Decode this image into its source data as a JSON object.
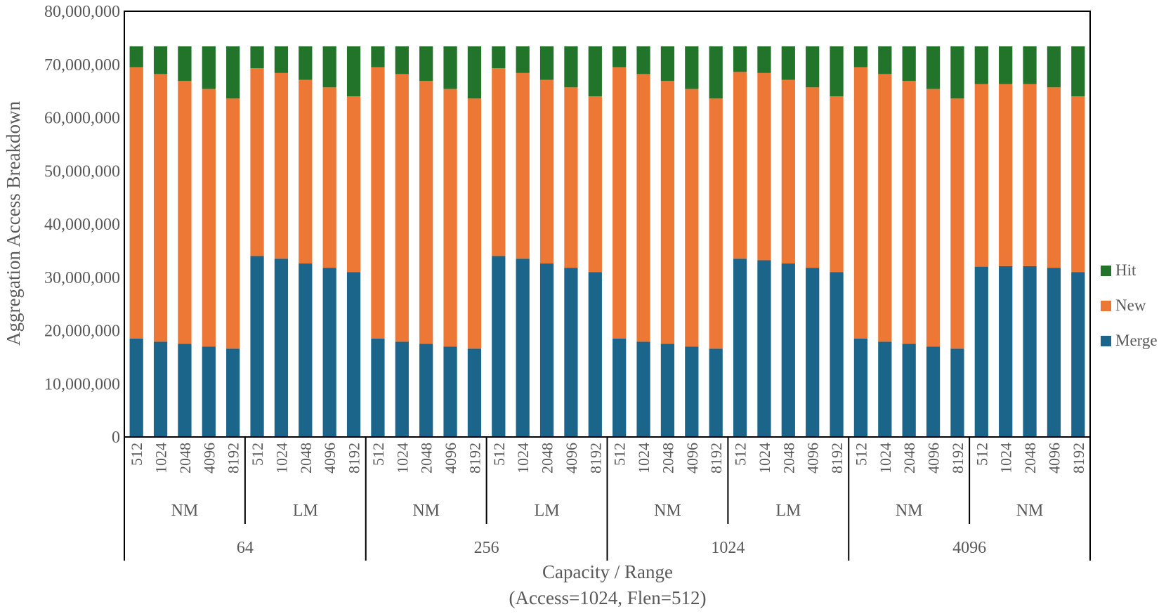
{
  "chart_data": {
    "type": "bar",
    "stacked": true,
    "ylabel": "Aggregation Access Breakdown",
    "xlabel": "Capacity / Range",
    "xlabel_sub": "(Access=1024, Flen=512)",
    "ylim": [
      0,
      80000000
    ],
    "yticks": [
      "0",
      "10,000,000",
      "20,000,000",
      "30,000,000",
      "40,000,000",
      "50,000,000",
      "60,000,000",
      "70,000,000",
      "80,000,000"
    ],
    "grid": false,
    "legend_position": "right",
    "categories": [
      "512",
      "1024",
      "2048",
      "4096",
      "8192",
      "512",
      "1024",
      "2048",
      "4096",
      "8192",
      "512",
      "1024",
      "2048",
      "4096",
      "8192",
      "512",
      "1024",
      "2048",
      "4096",
      "8192",
      "512",
      "1024",
      "2048",
      "4096",
      "8192",
      "512",
      "1024",
      "2048",
      "4096",
      "8192",
      "512",
      "1024",
      "2048",
      "4096",
      "8192",
      "512",
      "1024",
      "2048",
      "4096",
      "8192"
    ],
    "range_groups": [
      "NM",
      "LM",
      "NM",
      "LM",
      "NM",
      "LM",
      "NM",
      "NM"
    ],
    "capacity_groups": [
      "64",
      "256",
      "1024",
      "4096"
    ],
    "series": [
      {
        "name": "Merge",
        "color": "#1a6589",
        "values": [
          18500000,
          17900000,
          17500000,
          17000000,
          16600000,
          34000000,
          33500000,
          32600000,
          31800000,
          31000000,
          18500000,
          17900000,
          17500000,
          17000000,
          16600000,
          34000000,
          33500000,
          32600000,
          31800000,
          31000000,
          18500000,
          17900000,
          17500000,
          17000000,
          16600000,
          33500000,
          33200000,
          32600000,
          31800000,
          31000000,
          18500000,
          17900000,
          17500000,
          17000000,
          16600000,
          32000000,
          32100000,
          32100000,
          31800000,
          31000000
        ]
      },
      {
        "name": "New",
        "color": "#ed7734",
        "values": [
          51000000,
          50300000,
          49400000,
          48400000,
          47000000,
          35300000,
          34900000,
          34500000,
          33900000,
          33000000,
          51000000,
          50300000,
          49400000,
          48400000,
          47000000,
          35300000,
          34900000,
          34500000,
          33900000,
          33000000,
          51000000,
          50300000,
          49400000,
          48400000,
          47000000,
          35100000,
          35200000,
          34500000,
          33900000,
          33000000,
          51000000,
          50300000,
          49400000,
          48400000,
          47000000,
          34300000,
          34200000,
          34200000,
          33900000,
          33000000
        ]
      },
      {
        "name": "Hit",
        "color": "#23742b",
        "values": [
          3900000,
          5200000,
          6500000,
          8000000,
          9800000,
          4100000,
          5000000,
          6300000,
          7700000,
          9400000,
          3900000,
          5200000,
          6500000,
          8000000,
          9800000,
          4100000,
          5000000,
          6300000,
          7700000,
          9400000,
          3900000,
          5200000,
          6500000,
          8000000,
          9800000,
          4800000,
          5000000,
          6300000,
          7700000,
          9400000,
          3900000,
          5200000,
          6500000,
          8000000,
          9800000,
          7100000,
          7100000,
          7100000,
          7700000,
          9400000
        ]
      }
    ]
  }
}
